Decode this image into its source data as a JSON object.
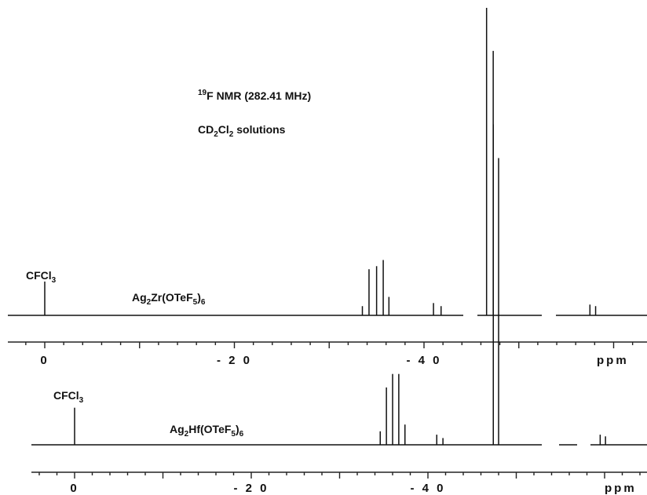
{
  "chart_data": {
    "type": "line",
    "title_prefix": "19",
    "title_main": "F NMR (282.41 MHz)",
    "subtitle_parts": [
      "CD",
      "2",
      "Cl",
      "2",
      " solutions"
    ],
    "xunit": "ppm",
    "xlim": [
      3.5,
      -69
    ],
    "x_ticks": [
      0,
      -20,
      -40
    ],
    "tick_labels": [
      "0",
      "- 2 0",
      "- 4 0"
    ],
    "panels": [
      {
        "name_parts": [
          "Ag",
          "2",
          "Zr(OTeF",
          "5",
          ")",
          "6"
        ],
        "reference_parts": [
          "CFCl",
          "3"
        ],
        "peaks": [
          {
            "ppm": 0.0,
            "height": 0.11
          },
          {
            "ppm": -33.5,
            "height": 0.03
          },
          {
            "ppm": -34.2,
            "height": 0.15
          },
          {
            "ppm": -35.0,
            "height": 0.16
          },
          {
            "ppm": -35.7,
            "height": 0.18
          },
          {
            "ppm": -36.3,
            "height": 0.06
          },
          {
            "ppm": -41.0,
            "height": 0.04
          },
          {
            "ppm": -41.8,
            "height": 0.03
          },
          {
            "ppm": -46.6,
            "height": 1.0
          },
          {
            "ppm": -47.3,
            "height": 0.86
          },
          {
            "ppm": -57.5,
            "height": 0.035
          },
          {
            "ppm": -58.1,
            "height": 0.03
          }
        ]
      },
      {
        "name_parts": [
          "Ag",
          "2",
          "Hf(OTeF",
          "5",
          ")",
          "6"
        ],
        "reference_parts": [
          "CFCl",
          "3"
        ],
        "peaks": [
          {
            "ppm": 0.0,
            "height": 0.11
          },
          {
            "ppm": -34.6,
            "height": 0.04
          },
          {
            "ppm": -35.3,
            "height": 0.17
          },
          {
            "ppm": -36.0,
            "height": 0.21
          },
          {
            "ppm": -36.7,
            "height": 0.21
          },
          {
            "ppm": -37.4,
            "height": 0.06
          },
          {
            "ppm": -41.0,
            "height": 0.03
          },
          {
            "ppm": -41.7,
            "height": 0.02
          },
          {
            "ppm": -47.4,
            "height": 0.95
          },
          {
            "ppm": -48.0,
            "height": 0.85
          },
          {
            "ppm": -59.5,
            "height": 0.03
          },
          {
            "ppm": -60.1,
            "height": 0.025
          }
        ]
      }
    ]
  }
}
